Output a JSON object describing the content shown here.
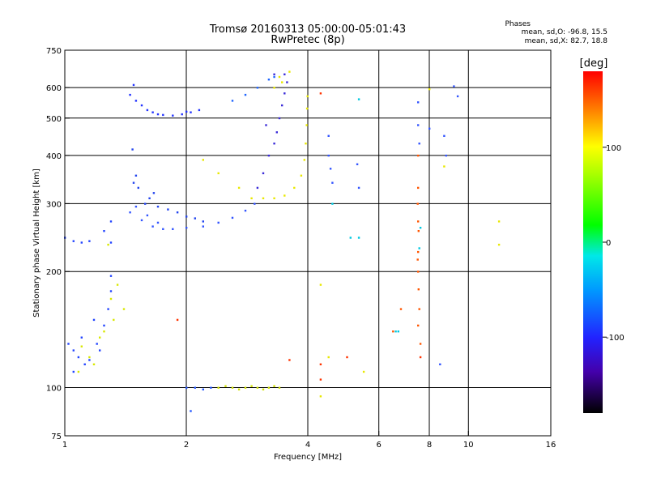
{
  "header": {
    "title_line1": "Tromsø 20160313 05:00:00-05:01:43",
    "title_line2": "RwPretec (8p)"
  },
  "phase_info": {
    "title": "Phases",
    "line_o": "mean, sd,O: -96.8, 15.5",
    "line_x": "mean, sd,X: 82.7, 18.8"
  },
  "colorbar": {
    "label": "[deg]",
    "ticks": [
      "100",
      "0",
      "-100"
    ],
    "range": [
      -180,
      180
    ],
    "tick_values": [
      100,
      0,
      -100
    ]
  },
  "chart_data": {
    "type": "scatter",
    "xlabel": "Frequency [MHz]",
    "ylabel": "Stationary phase Virtual Height [km]",
    "xscale": "log",
    "yscale": "log",
    "xlim": [
      1,
      16
    ],
    "ylim": [
      75,
      750
    ],
    "x_ticks": [
      1,
      2,
      4,
      6,
      8,
      10,
      16
    ],
    "x_tick_labels": [
      "1",
      "2",
      "4",
      "6",
      "8",
      "10",
      "16"
    ],
    "y_ticks": [
      75,
      100,
      200,
      300,
      400,
      500,
      600,
      750
    ],
    "y_tick_labels": [
      "75",
      "100",
      "200",
      "300",
      "400",
      "500",
      "600",
      "750"
    ],
    "grid": true,
    "x_gridlines": [
      2,
      4,
      6,
      8,
      10
    ],
    "y_gridlines": [
      100,
      200,
      300,
      400,
      500,
      600
    ],
    "series": [
      {
        "name": "",
        "phase": -100,
        "color": "#2233ff",
        "points": [
          [
            1.45,
            575
          ],
          [
            1.55,
            540
          ],
          [
            1.65,
            518
          ],
          [
            1.75,
            510
          ],
          [
            1.85,
            508
          ],
          [
            1.95,
            512
          ],
          [
            2.05,
            518
          ],
          [
            2.15,
            525
          ],
          [
            2.0,
            520
          ],
          [
            1.7,
            512
          ],
          [
            1.6,
            525
          ],
          [
            1.5,
            555
          ],
          [
            1.48,
            610
          ]
        ]
      },
      {
        "name": "",
        "phase": -100,
        "color": "#3355ff",
        "points": [
          [
            1.45,
            285
          ],
          [
            1.55,
            272
          ],
          [
            1.65,
            262
          ],
          [
            1.75,
            258
          ],
          [
            1.85,
            258
          ],
          [
            2.0,
            260
          ],
          [
            2.2,
            262
          ],
          [
            2.4,
            268
          ],
          [
            2.6,
            276
          ],
          [
            2.8,
            288
          ],
          [
            2.95,
            300
          ],
          [
            1.5,
            295
          ],
          [
            1.6,
            280
          ],
          [
            1.7,
            268
          ]
        ]
      },
      {
        "name": "",
        "phase": -100,
        "color": "#2244ee",
        "points": [
          [
            1.48,
            340
          ],
          [
            1.5,
            355
          ],
          [
            1.52,
            330
          ],
          [
            1.58,
            300
          ],
          [
            1.62,
            310
          ],
          [
            1.66,
            320
          ],
          [
            1.7,
            295
          ],
          [
            1.8,
            290
          ],
          [
            1.9,
            285
          ],
          [
            2.0,
            278
          ],
          [
            2.1,
            275
          ],
          [
            2.2,
            270
          ],
          [
            1.47,
            415
          ]
        ]
      },
      {
        "name": "",
        "phase": -110,
        "color": "#3a2bd8",
        "points": [
          [
            3.0,
            330
          ],
          [
            3.1,
            360
          ],
          [
            3.2,
            400
          ],
          [
            3.3,
            430
          ],
          [
            3.35,
            460
          ],
          [
            3.4,
            500
          ],
          [
            3.45,
            540
          ],
          [
            3.5,
            580
          ],
          [
            3.55,
            620
          ],
          [
            3.5,
            650
          ],
          [
            3.3,
            650
          ],
          [
            3.15,
            480
          ]
        ]
      },
      {
        "name": "",
        "phase": -100,
        "color": "#1e64ff",
        "points": [
          [
            2.6,
            555
          ],
          [
            2.8,
            575
          ],
          [
            3.0,
            600
          ],
          [
            3.2,
            630
          ],
          [
            3.3,
            640
          ]
        ]
      },
      {
        "name": "",
        "phase": 100,
        "color": "#e8e800",
        "points": [
          [
            3.1,
            310
          ],
          [
            3.3,
            310
          ],
          [
            3.5,
            315
          ],
          [
            3.7,
            330
          ],
          [
            3.85,
            355
          ],
          [
            3.92,
            390
          ],
          [
            3.95,
            430
          ],
          [
            3.97,
            480
          ],
          [
            3.98,
            530
          ],
          [
            3.99,
            570
          ],
          [
            3.6,
            660
          ],
          [
            3.4,
            640
          ],
          [
            2.2,
            390
          ],
          [
            2.4,
            360
          ],
          [
            2.7,
            330
          ],
          [
            2.9,
            310
          ],
          [
            3.3,
            600
          ],
          [
            3.45,
            620
          ]
        ]
      },
      {
        "name": "",
        "phase": -100,
        "color": "#2244ff",
        "points": [
          [
            1.02,
            130
          ],
          [
            1.05,
            125
          ],
          [
            1.08,
            120
          ],
          [
            1.12,
            115
          ],
          [
            1.15,
            118
          ],
          [
            1.2,
            130
          ],
          [
            1.25,
            145
          ],
          [
            1.28,
            160
          ],
          [
            1.3,
            178
          ],
          [
            1.3,
            195
          ],
          [
            1.05,
            110
          ],
          [
            1.1,
            135
          ],
          [
            1.18,
            150
          ],
          [
            1.22,
            125
          ],
          [
            1.0,
            245
          ],
          [
            1.05,
            240
          ],
          [
            1.1,
            238
          ],
          [
            1.15,
            240
          ],
          [
            1.25,
            255
          ],
          [
            1.3,
            238
          ],
          [
            1.3,
            270
          ]
        ]
      },
      {
        "name": "",
        "phase": 100,
        "color": "#d8e800",
        "points": [
          [
            1.1,
            128
          ],
          [
            1.15,
            120
          ],
          [
            1.25,
            140
          ],
          [
            1.32,
            150
          ],
          [
            1.3,
            170
          ],
          [
            1.18,
            115
          ],
          [
            1.22,
            135
          ],
          [
            1.08,
            110
          ],
          [
            1.28,
            235
          ],
          [
            1.35,
            185
          ],
          [
            1.4,
            160
          ]
        ]
      },
      {
        "name": "",
        "phase": 100,
        "color": "#d0e000",
        "points": [
          [
            2.4,
            100
          ],
          [
            2.5,
            101
          ],
          [
            2.6,
            100
          ],
          [
            2.7,
            99
          ],
          [
            2.8,
            100
          ],
          [
            2.9,
            101
          ],
          [
            3.0,
            100
          ],
          [
            3.1,
            99
          ],
          [
            3.2,
            100
          ],
          [
            3.3,
            101
          ],
          [
            3.4,
            100
          ]
        ]
      },
      {
        "name": "",
        "phase": -100,
        "color": "#2255ff",
        "points": [
          [
            2.0,
            100
          ],
          [
            2.1,
            100
          ],
          [
            2.2,
            99
          ],
          [
            2.3,
            100
          ],
          [
            2.05,
            87
          ]
        ]
      },
      {
        "name": "",
        "phase": 150,
        "color": "#ff5500",
        "points": [
          [
            7.5,
            145
          ],
          [
            7.55,
            160
          ],
          [
            7.52,
            180
          ],
          [
            7.5,
            200
          ],
          [
            7.48,
            215
          ],
          [
            7.5,
            225
          ],
          [
            7.52,
            255
          ],
          [
            7.5,
            270
          ],
          [
            7.48,
            300
          ],
          [
            7.5,
            330
          ],
          [
            7.5,
            400
          ],
          [
            6.8,
            160
          ],
          [
            6.5,
            140
          ],
          [
            7.6,
            130
          ]
        ]
      },
      {
        "name": "",
        "phase": -100,
        "color": "#3355ff",
        "points": [
          [
            7.55,
            430
          ],
          [
            7.5,
            480
          ],
          [
            7.5,
            550
          ],
          [
            8.0,
            470
          ],
          [
            8.7,
            450
          ],
          [
            8.8,
            400
          ],
          [
            9.2,
            605
          ],
          [
            9.4,
            570
          ],
          [
            8.5,
            115
          ],
          [
            4.5,
            450
          ],
          [
            4.5,
            400
          ],
          [
            4.55,
            370
          ],
          [
            4.6,
            340
          ],
          [
            5.3,
            380
          ],
          [
            5.35,
            330
          ]
        ]
      },
      {
        "name": "",
        "phase": -30,
        "color": "#00c8e0",
        "points": [
          [
            6.6,
            140
          ],
          [
            6.7,
            140
          ],
          [
            5.1,
            245
          ],
          [
            5.35,
            245
          ],
          [
            5.35,
            560
          ],
          [
            4.6,
            300
          ],
          [
            7.6,
            260
          ],
          [
            7.55,
            230
          ]
        ]
      },
      {
        "name": "",
        "phase": 100,
        "color": "#e8e800",
        "points": [
          [
            8.0,
            595
          ],
          [
            8.7,
            375
          ],
          [
            11.9,
            235
          ],
          [
            11.9,
            270
          ],
          [
            4.3,
            185
          ],
          [
            4.5,
            120
          ],
          [
            4.3,
            95
          ],
          [
            5.5,
            110
          ]
        ]
      },
      {
        "name": "",
        "phase": 160,
        "color": "#ff3300",
        "points": [
          [
            4.3,
            580
          ],
          [
            4.3,
            115
          ],
          [
            4.3,
            105
          ],
          [
            5.0,
            120
          ],
          [
            3.6,
            118
          ],
          [
            7.6,
            120
          ],
          [
            1.9,
            150
          ]
        ]
      }
    ]
  }
}
